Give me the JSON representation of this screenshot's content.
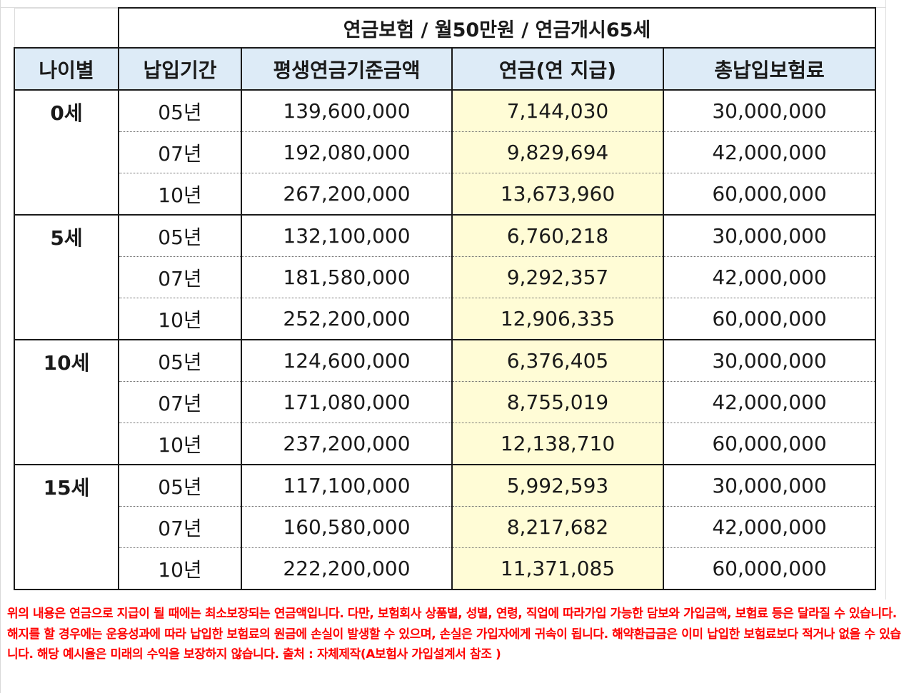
{
  "table": {
    "title": "연금보험 / 월50만원 / 연금개시65세",
    "headers": [
      "나이별",
      "납입기간",
      "평생연금기준금액",
      "연금(연 지급)",
      "총납입보험료"
    ],
    "groups": [
      {
        "age": "0세",
        "rows": [
          {
            "period": "05년",
            "base": "139,600,000",
            "annuity": "7,144,030",
            "premium": "30,000,000"
          },
          {
            "period": "07년",
            "base": "192,080,000",
            "annuity": "9,829,694",
            "premium": "42,000,000"
          },
          {
            "period": "10년",
            "base": "267,200,000",
            "annuity": "13,673,960",
            "premium": "60,000,000"
          }
        ]
      },
      {
        "age": "5세",
        "rows": [
          {
            "period": "05년",
            "base": "132,100,000",
            "annuity": "6,760,218",
            "premium": "30,000,000"
          },
          {
            "period": "07년",
            "base": "181,580,000",
            "annuity": "9,292,357",
            "premium": "42,000,000"
          },
          {
            "period": "10년",
            "base": "252,200,000",
            "annuity": "12,906,335",
            "premium": "60,000,000"
          }
        ]
      },
      {
        "age": "10세",
        "rows": [
          {
            "period": "05년",
            "base": "124,600,000",
            "annuity": "6,376,405",
            "premium": "30,000,000"
          },
          {
            "period": "07년",
            "base": "171,080,000",
            "annuity": "8,755,019",
            "premium": "42,000,000"
          },
          {
            "period": "10년",
            "base": "237,200,000",
            "annuity": "12,138,710",
            "premium": "60,000,000"
          }
        ]
      },
      {
        "age": "15세",
        "rows": [
          {
            "period": "05년",
            "base": "117,100,000",
            "annuity": "5,992,593",
            "premium": "30,000,000"
          },
          {
            "period": "07년",
            "base": "160,580,000",
            "annuity": "8,217,682",
            "premium": "42,000,000"
          },
          {
            "period": "10년",
            "base": "222,200,000",
            "annuity": "11,371,085",
            "premium": "60,000,000"
          }
        ]
      }
    ]
  },
  "disclaimer": "위의 내용은 연금으로 지급이 될 때에는 최소보장되는 연금액입니다. 다만, 보험회사 상품별, 성별, 연령, 직업에 따라가입 가능한 담보와 가입금액, 보험료 등은 달라질 수 있습니다. 해지를 할 경우에는 운용성과에 따라 납입한 보험료의 원금에 손실이 발생할 수 있으며, 손실은 가입자에게 귀속이 됩니다. 해약환급금은 이미 납입한 보험료보다 적거나 없을 수 있습니다. 해당 예시율은 미래의 수익을 보장하지 않습니다. 출처 : 자체제작(A보험사 가입설계서 참조 )",
  "colors": {
    "header_bg": "#ddebf7",
    "annuity_bg": "#fffcd6",
    "disclaimer_text": "#ff0000"
  }
}
